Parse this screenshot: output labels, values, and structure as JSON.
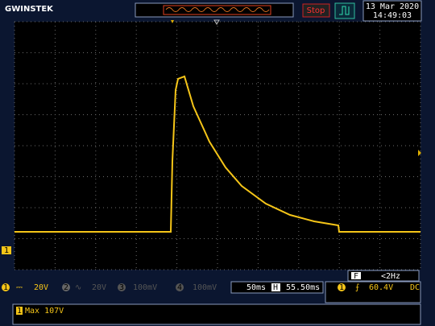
{
  "header": {
    "brand": "GWINSTEK",
    "run_state": "Stop",
    "date": "13 Mar 2020",
    "time": "14:49:03"
  },
  "channels": [
    {
      "label": "1",
      "scale": "20V"
    },
    {
      "label": "2",
      "scale": "20V"
    },
    {
      "label": "3",
      "scale": "100mV"
    },
    {
      "label": "4",
      "scale": "100mV"
    }
  ],
  "timebase": {
    "scale": "50ms",
    "mode": "H",
    "position": "55.50ms"
  },
  "trigger": {
    "source": "1",
    "level": "60.4V",
    "coupling": "DC"
  },
  "frequency": {
    "label": "F",
    "value": "<2Hz"
  },
  "measurement": {
    "source": "1",
    "text": "Max 107V"
  },
  "ground_marker": "1"
}
